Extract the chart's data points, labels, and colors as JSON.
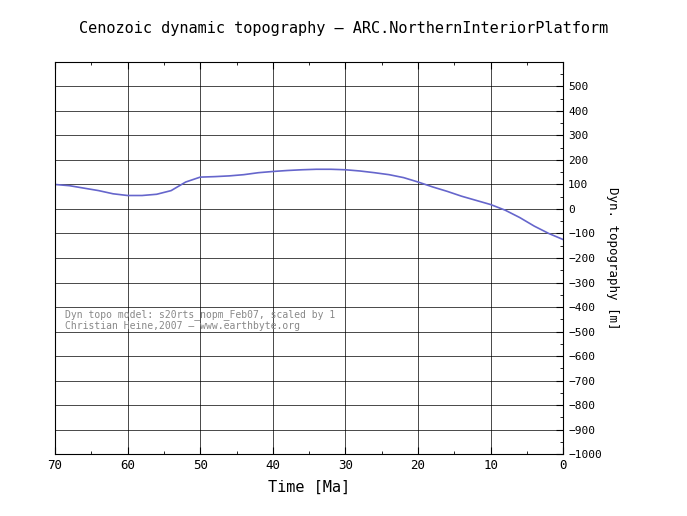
{
  "title": "Cenozoic dynamic topography – ARC.NorthernInteriorPlatform",
  "xlabel": "Time [Ma]",
  "ylabel": "Dyn. topography [m]",
  "annotation_line1": "Dyn topo model: s20rts_nopm_Feb07, scaled by 1",
  "annotation_line2": "Christian Heine,2007 – www.earthbyte.org",
  "line_color": "#6666cc",
  "background_color": "#ffffff",
  "xlim": [
    70,
    0
  ],
  "ylim": [
    -1000,
    600
  ],
  "yticks": [
    -1000,
    -900,
    -800,
    -700,
    -600,
    -500,
    -400,
    -300,
    -200,
    -100,
    0,
    100,
    200,
    300,
    400,
    500
  ],
  "xticks": [
    70,
    60,
    50,
    40,
    30,
    20,
    10,
    0
  ],
  "time_values": [
    70,
    68,
    66,
    64,
    62,
    60,
    58,
    56,
    54,
    52,
    50,
    48,
    46,
    44,
    42,
    40,
    38,
    36,
    34,
    32,
    30,
    28,
    26,
    24,
    22,
    20,
    18,
    16,
    14,
    12,
    10,
    8,
    6,
    4,
    2,
    0
  ],
  "topo_values": [
    100,
    95,
    85,
    75,
    62,
    55,
    55,
    60,
    75,
    110,
    130,
    132,
    135,
    140,
    148,
    153,
    157,
    160,
    162,
    162,
    160,
    155,
    148,
    140,
    128,
    110,
    90,
    72,
    52,
    35,
    18,
    -5,
    -35,
    -70,
    -100,
    -125
  ]
}
